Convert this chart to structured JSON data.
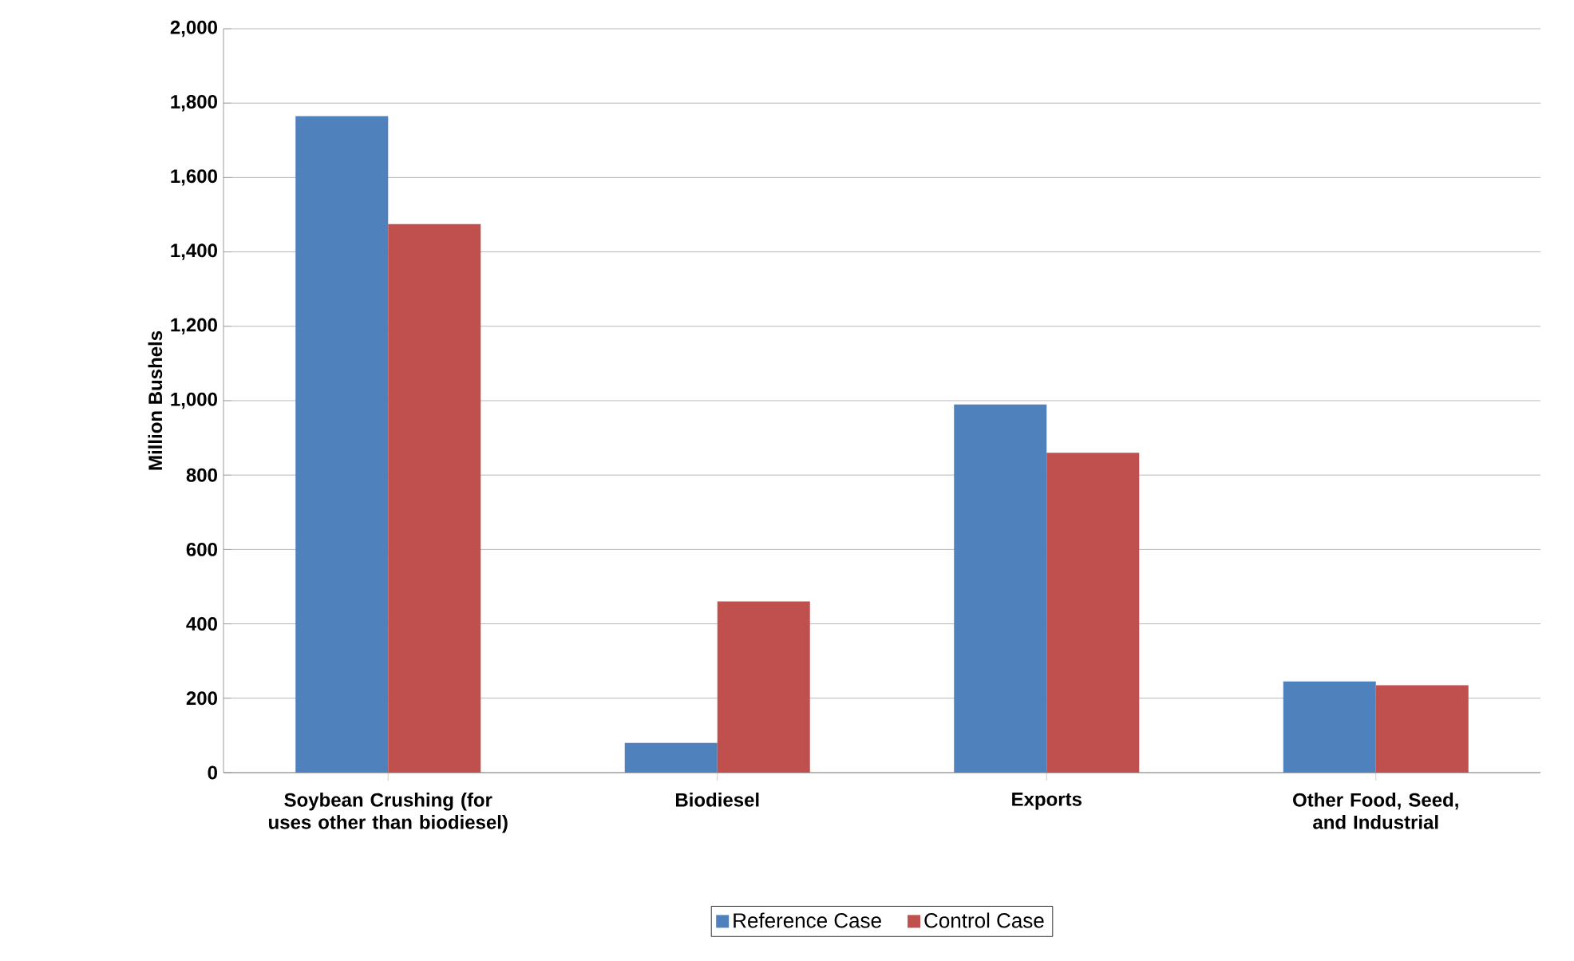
{
  "chart_data": {
    "type": "bar",
    "ylabel": "Million Bushels",
    "categories": [
      "Soybean Crushing (for uses other than biodiesel)",
      "Biodiesel",
      "Exports",
      "Other Food, Seed, and Industrial"
    ],
    "series": [
      {
        "name": "Reference Case",
        "color": "#4f81bd",
        "values": [
          1765,
          80,
          990,
          245
        ]
      },
      {
        "name": "Control Case",
        "color": "#c0504d",
        "values": [
          1475,
          460,
          860,
          235
        ]
      }
    ],
    "ylim": [
      0,
      2000
    ],
    "yticks": [
      {
        "value": 0,
        "label": "0"
      },
      {
        "value": 200,
        "label": "200"
      },
      {
        "value": 400,
        "label": "400"
      },
      {
        "value": 600,
        "label": "600"
      },
      {
        "value": 800,
        "label": "800"
      },
      {
        "value": 1000,
        "label": "1,000"
      },
      {
        "value": 1200,
        "label": "1,200"
      },
      {
        "value": 1400,
        "label": "1,400"
      },
      {
        "value": 1600,
        "label": "1,600"
      },
      {
        "value": 1800,
        "label": "1,800"
      },
      {
        "value": 2000,
        "label": "2,000"
      }
    ],
    "grid": "y",
    "legend": "bottom"
  }
}
